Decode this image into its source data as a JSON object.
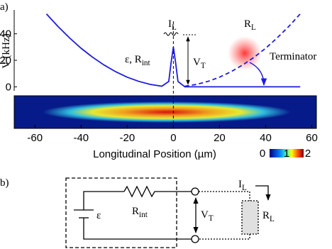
{
  "panel_labels": [
    "a)",
    "b)"
  ],
  "chart_data": {
    "type": "line",
    "xlabel": "Longitudinal Position (µm)",
    "ylabel": "V (kHz)",
    "x": [
      -55,
      -50,
      -45,
      -40,
      -35,
      -30,
      -25,
      -20,
      -15,
      -10,
      -5,
      -2,
      -1,
      0,
      1,
      2,
      5,
      10,
      15,
      20,
      25,
      30,
      35,
      40,
      45,
      50,
      55
    ],
    "series": [
      {
        "color": "#1c1ce0",
        "linestyle": "solid",
        "values": [
          55,
          45.5,
          36.9,
          29.1,
          22.3,
          16.4,
          11.4,
          7.3,
          4.1,
          1.8,
          0.5,
          4,
          18,
          30,
          18,
          4,
          0,
          0,
          0,
          0,
          0,
          0,
          0,
          0,
          0,
          0,
          0
        ]
      },
      {
        "color": "#1c1ce0",
        "linestyle": "dashed",
        "values": [
          null,
          null,
          null,
          null,
          null,
          null,
          null,
          null,
          null,
          null,
          null,
          null,
          null,
          null,
          null,
          null,
          0.5,
          1.8,
          4.1,
          7.3,
          11.4,
          16.4,
          22.3,
          29.1,
          36.9,
          45.5,
          55
        ]
      }
    ],
    "xlim": [
      -69,
      62
    ],
    "xticks": [
      -60,
      -40,
      -20,
      0,
      20,
      40,
      60
    ],
    "ylim": [
      -3,
      58
    ],
    "yticks": [
      0,
      20,
      40
    ],
    "annotations": {
      "source": {
        "text": "ε, R",
        "sub": "int"
      },
      "current": {
        "text": "I",
        "sub": "L"
      },
      "voltage": {
        "text": "V",
        "sub": "T"
      },
      "load": {
        "text": "R",
        "sub": "L"
      },
      "terminator": "Terminator"
    },
    "colorbar_ticks": [
      0,
      1,
      2
    ]
  },
  "circuit": {
    "emf": "ε",
    "resistor": {
      "text": "R",
      "sub": "int"
    },
    "voltage": {
      "text": "V",
      "sub": "T"
    },
    "current": {
      "text": "I",
      "sub": "L"
    },
    "load": {
      "text": "R",
      "sub": "L"
    }
  }
}
